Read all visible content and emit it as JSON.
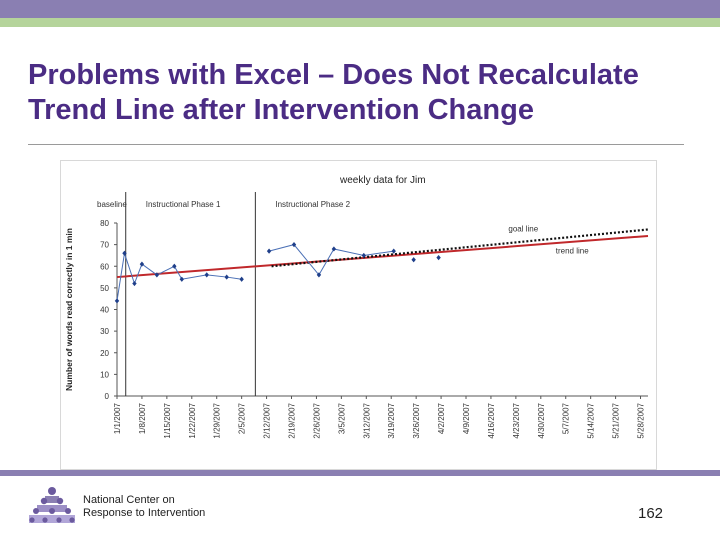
{
  "slide": {
    "title_line1": "Problems with Excel – Does Not Recalculate",
    "title_line2": "Trend Line after Intervention Change",
    "page_number": "162",
    "org_line1": "National Center on",
    "org_line2": "Response to Intervention",
    "colors": {
      "accent": "#4b2c84",
      "band": "#8a7fb2",
      "green": "#b5d49b"
    }
  },
  "chart_data": {
    "type": "line",
    "title": "weekly data for Jim",
    "ylabel": "Number of words read correctly in 1 min",
    "xlabel": "",
    "ylim": [
      0,
      80
    ],
    "yticks": [
      0,
      10,
      20,
      30,
      40,
      50,
      60,
      70,
      80
    ],
    "grid": false,
    "categories": [
      "1/1/2007",
      "1/8/2007",
      "1/15/2007",
      "1/22/2007",
      "1/29/2007",
      "2/5/2007",
      "2/12/2007",
      "2/19/2007",
      "2/26/2007",
      "3/5/2007",
      "3/12/2007",
      "3/19/2007",
      "3/26/2007",
      "4/2/2007",
      "4/9/2007",
      "4/16/2007",
      "4/23/2007",
      "4/30/2007",
      "5/7/2007",
      "5/14/2007",
      "5/21/2007",
      "5/28/2007"
    ],
    "phases": [
      {
        "label": "baseline",
        "start": 0,
        "end": 0.35
      },
      {
        "label": "Instructional Phase 1",
        "start": 0.35,
        "end": 5.55
      },
      {
        "label": "Instructional Phase 2",
        "start": 5.55,
        "end": 21.3
      }
    ],
    "series": [
      {
        "name": "weekly data",
        "points": [
          {
            "x": 0.0,
            "y": 44
          },
          {
            "x": 0.3,
            "y": 66
          },
          {
            "x": 0.7,
            "y": 52
          },
          {
            "x": 1.0,
            "y": 61
          },
          {
            "x": 1.6,
            "y": 56
          },
          {
            "x": 2.3,
            "y": 60
          },
          {
            "x": 2.6,
            "y": 54
          },
          {
            "x": 3.6,
            "y": 56
          },
          {
            "x": 4.4,
            "y": 55
          },
          {
            "x": 5.0,
            "y": 54
          },
          {
            "x": 6.1,
            "y": 67
          },
          {
            "x": 7.1,
            "y": 70
          },
          {
            "x": 8.1,
            "y": 56
          },
          {
            "x": 8.7,
            "y": 68
          },
          {
            "x": 9.9,
            "y": 65
          },
          {
            "x": 11.1,
            "y": 67
          },
          {
            "x": 11.9,
            "y": 63
          },
          {
            "x": 12.9,
            "y": 64
          }
        ]
      },
      {
        "name": "goal line",
        "points": [
          {
            "x": 6.2,
            "y": 60
          },
          {
            "x": 21.3,
            "y": 77
          }
        ]
      },
      {
        "name": "trend line",
        "points": [
          {
            "x": 0.0,
            "y": 55
          },
          {
            "x": 21.3,
            "y": 74
          }
        ]
      }
    ],
    "annotations": {
      "goal_line": "goal line",
      "trend_line": "trend line"
    }
  }
}
